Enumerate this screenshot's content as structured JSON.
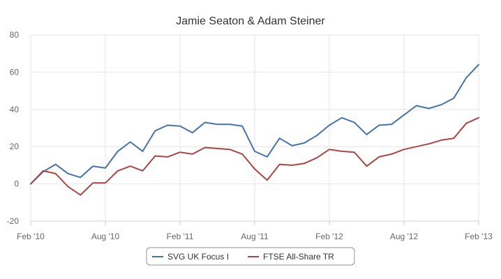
{
  "chart_data": {
    "type": "line",
    "title": "Jamie Seaton & Adam Steiner",
    "xlabel": "",
    "ylabel": "",
    "ylim": [
      -20,
      80
    ],
    "yticks": [
      -20,
      0,
      20,
      40,
      60,
      80
    ],
    "xlim": [
      "2010-02",
      "2013-02"
    ],
    "xticks": [
      {
        "date": "2010-02",
        "label": "Feb '10"
      },
      {
        "date": "2010-08",
        "label": "Aug '10"
      },
      {
        "date": "2011-02",
        "label": "Feb '11"
      },
      {
        "date": "2011-08",
        "label": "Aug '11"
      },
      {
        "date": "2012-02",
        "label": "Feb '12"
      },
      {
        "date": "2012-08",
        "label": "Aug '12"
      },
      {
        "date": "2013-02",
        "label": "Feb '13"
      }
    ],
    "grid": true,
    "legend_position": "bottom",
    "x": [
      "2010-02",
      "2010-03",
      "2010-04",
      "2010-05",
      "2010-06",
      "2010-07",
      "2010-08",
      "2010-09",
      "2010-10",
      "2010-11",
      "2010-12",
      "2011-01",
      "2011-02",
      "2011-03",
      "2011-04",
      "2011-05",
      "2011-06",
      "2011-07",
      "2011-08",
      "2011-09",
      "2011-10",
      "2011-11",
      "2011-12",
      "2012-01",
      "2012-02",
      "2012-03",
      "2012-04",
      "2012-05",
      "2012-06",
      "2012-07",
      "2012-08",
      "2012-09",
      "2012-10",
      "2012-11",
      "2012-12",
      "2013-01",
      "2013-02"
    ],
    "series": [
      {
        "name": "SVG UK Focus I",
        "color": "#4572a7",
        "values": [
          0,
          6.5,
          10.5,
          5.5,
          3.5,
          9.5,
          8.5,
          17.5,
          22.5,
          17.5,
          28.5,
          31.5,
          31,
          27.5,
          33,
          32,
          32,
          31,
          17.5,
          14.5,
          24.5,
          20.5,
          22,
          26,
          31.5,
          35.5,
          33,
          26.5,
          31.5,
          32,
          37,
          42,
          40.5,
          42.5,
          46,
          57,
          64
        ]
      },
      {
        "name": "FTSE All-Share TR",
        "color": "#aa4643",
        "values": [
          0,
          7,
          5.5,
          -1.5,
          -6,
          0.5,
          0.5,
          7,
          9.5,
          7,
          15,
          14.5,
          17,
          16,
          19.5,
          19,
          18.5,
          16,
          8,
          2,
          10.5,
          10,
          11,
          14,
          18.5,
          17.5,
          17,
          9.5,
          14.5,
          16,
          18.5,
          20,
          21.5,
          23.5,
          24.5,
          32.5,
          35.5
        ]
      }
    ]
  }
}
